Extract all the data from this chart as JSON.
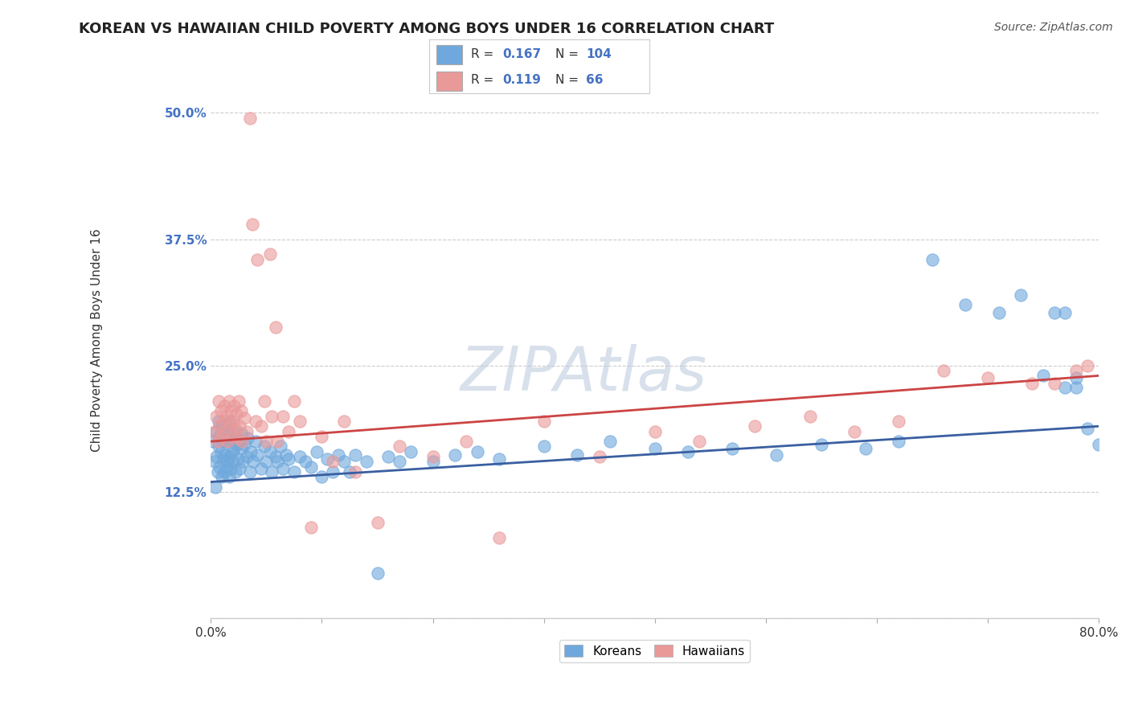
{
  "title": "KOREAN VS HAWAIIAN CHILD POVERTY AMONG BOYS UNDER 16 CORRELATION CHART",
  "source": "Source: ZipAtlas.com",
  "ylabel": "Child Poverty Among Boys Under 16",
  "xlim": [
    0.0,
    0.8
  ],
  "ylim": [
    0.0,
    0.55
  ],
  "xticks": [
    0.0,
    0.1,
    0.2,
    0.3,
    0.4,
    0.5,
    0.6,
    0.7,
    0.8
  ],
  "xticklabels": [
    "0.0%",
    "",
    "",
    "",
    "",
    "",
    "",
    "",
    "80.0%"
  ],
  "yticks": [
    0.0,
    0.125,
    0.25,
    0.375,
    0.5
  ],
  "yticklabels": [
    "",
    "12.5%",
    "25.0%",
    "37.5%",
    "50.0%"
  ],
  "korean_color": "#6fa8dc",
  "hawaiian_color": "#ea9999",
  "korean_line_color": "#3a5fa0",
  "hawaiian_line_color": "#cc4444",
  "korean_R": 0.167,
  "korean_N": 104,
  "hawaiian_R": 0.119,
  "hawaiian_N": 66,
  "watermark": "ZIPAtlas",
  "watermark_color": "#c8d4e8",
  "background_color": "#ffffff",
  "grid_color": "#cccccc",
  "legend_labels": [
    "Koreans",
    "Hawaiians"
  ],
  "korean_x": [
    0.002,
    0.003,
    0.004,
    0.005,
    0.005,
    0.006,
    0.007,
    0.007,
    0.008,
    0.008,
    0.009,
    0.01,
    0.01,
    0.011,
    0.011,
    0.012,
    0.012,
    0.013,
    0.013,
    0.014,
    0.014,
    0.015,
    0.015,
    0.016,
    0.016,
    0.017,
    0.017,
    0.018,
    0.018,
    0.019,
    0.02,
    0.02,
    0.021,
    0.022,
    0.022,
    0.023,
    0.024,
    0.025,
    0.026,
    0.027,
    0.028,
    0.029,
    0.03,
    0.032,
    0.033,
    0.035,
    0.036,
    0.038,
    0.04,
    0.042,
    0.045,
    0.048,
    0.05,
    0.053,
    0.055,
    0.058,
    0.06,
    0.063,
    0.065,
    0.068,
    0.07,
    0.075,
    0.08,
    0.085,
    0.09,
    0.095,
    0.1,
    0.105,
    0.11,
    0.115,
    0.12,
    0.125,
    0.13,
    0.14,
    0.15,
    0.16,
    0.17,
    0.18,
    0.2,
    0.22,
    0.24,
    0.26,
    0.3,
    0.33,
    0.36,
    0.4,
    0.43,
    0.47,
    0.51,
    0.55,
    0.59,
    0.62,
    0.65,
    0.68,
    0.71,
    0.73,
    0.75,
    0.76,
    0.77,
    0.78,
    0.77,
    0.78,
    0.79,
    0.8
  ],
  "korean_y": [
    0.175,
    0.155,
    0.13,
    0.185,
    0.16,
    0.145,
    0.17,
    0.195,
    0.15,
    0.18,
    0.165,
    0.14,
    0.19,
    0.158,
    0.175,
    0.145,
    0.185,
    0.162,
    0.178,
    0.15,
    0.192,
    0.155,
    0.175,
    0.14,
    0.185,
    0.16,
    0.195,
    0.148,
    0.178,
    0.165,
    0.155,
    0.18,
    0.168,
    0.145,
    0.185,
    0.172,
    0.158,
    0.175,
    0.148,
    0.168,
    0.182,
    0.155,
    0.172,
    0.16,
    0.178,
    0.145,
    0.165,
    0.155,
    0.175,
    0.162,
    0.148,
    0.17,
    0.155,
    0.165,
    0.145,
    0.16,
    0.155,
    0.17,
    0.148,
    0.162,
    0.158,
    0.145,
    0.16,
    0.155,
    0.15,
    0.165,
    0.14,
    0.158,
    0.145,
    0.162,
    0.155,
    0.145,
    0.162,
    0.155,
    0.045,
    0.16,
    0.155,
    0.165,
    0.155,
    0.162,
    0.165,
    0.158,
    0.17,
    0.162,
    0.175,
    0.168,
    0.165,
    0.168,
    0.162,
    0.172,
    0.168,
    0.175,
    0.355,
    0.31,
    0.302,
    0.32,
    0.24,
    0.302,
    0.228,
    0.238,
    0.302,
    0.228,
    0.188,
    0.172
  ],
  "hawaiian_x": [
    0.003,
    0.005,
    0.006,
    0.007,
    0.008,
    0.009,
    0.01,
    0.011,
    0.012,
    0.013,
    0.014,
    0.015,
    0.016,
    0.017,
    0.018,
    0.019,
    0.02,
    0.021,
    0.022,
    0.023,
    0.024,
    0.025,
    0.026,
    0.027,
    0.028,
    0.03,
    0.032,
    0.035,
    0.037,
    0.04,
    0.042,
    0.045,
    0.048,
    0.05,
    0.053,
    0.055,
    0.058,
    0.06,
    0.065,
    0.07,
    0.075,
    0.08,
    0.09,
    0.1,
    0.11,
    0.12,
    0.13,
    0.15,
    0.17,
    0.2,
    0.23,
    0.26,
    0.3,
    0.35,
    0.4,
    0.44,
    0.49,
    0.54,
    0.58,
    0.62,
    0.66,
    0.7,
    0.74,
    0.76,
    0.78,
    0.79
  ],
  "hawaiian_y": [
    0.185,
    0.2,
    0.175,
    0.215,
    0.19,
    0.205,
    0.18,
    0.195,
    0.21,
    0.185,
    0.2,
    0.175,
    0.215,
    0.192,
    0.205,
    0.18,
    0.195,
    0.21,
    0.188,
    0.202,
    0.178,
    0.215,
    0.19,
    0.205,
    0.175,
    0.198,
    0.185,
    0.495,
    0.39,
    0.195,
    0.355,
    0.19,
    0.215,
    0.175,
    0.36,
    0.2,
    0.288,
    0.175,
    0.2,
    0.185,
    0.215,
    0.195,
    0.09,
    0.18,
    0.155,
    0.195,
    0.145,
    0.095,
    0.17,
    0.16,
    0.175,
    0.08,
    0.195,
    0.16,
    0.185,
    0.175,
    0.19,
    0.2,
    0.185,
    0.195,
    0.245,
    0.238,
    0.232,
    0.232,
    0.245,
    0.25
  ],
  "title_fontsize": 13,
  "axis_label_fontsize": 11,
  "tick_fontsize": 11,
  "legend_fontsize": 11,
  "source_fontsize": 10
}
